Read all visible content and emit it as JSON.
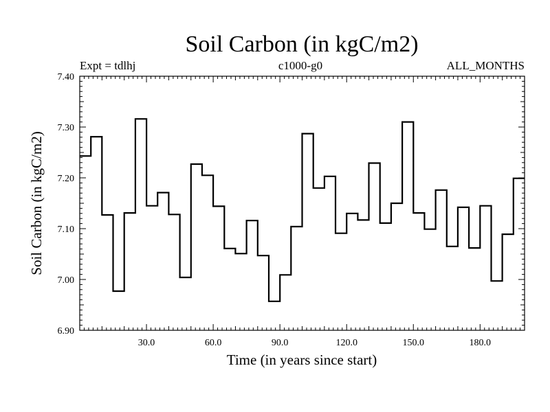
{
  "chart_data": {
    "type": "line",
    "step": true,
    "title": "Soil Carbon (in kgC/m2)",
    "subtitle_left": "Expt = tdlhj",
    "subtitle_center": "c1000-g0",
    "subtitle_right": "ALL_MONTHS",
    "xlabel": "Time (in years since start)",
    "ylabel": "Soil Carbon (in kgC/m2)",
    "xlim": [
      0,
      200
    ],
    "ylim": [
      6.9,
      7.4
    ],
    "xticks": [
      30,
      60,
      90,
      120,
      150,
      180
    ],
    "xtick_labels": [
      "30.0",
      "60.0",
      "90.0",
      "120.0",
      "150.0",
      "180.0"
    ],
    "yticks": [
      6.9,
      7.0,
      7.1,
      7.2,
      7.3,
      7.4
    ],
    "ytick_labels": [
      "6.90",
      "7.00",
      "7.10",
      "7.20",
      "7.30",
      "7.40"
    ],
    "series": [
      {
        "name": "Soil Carbon",
        "x": [
          0,
          5,
          10,
          15,
          20,
          25,
          30,
          35,
          40,
          45,
          50,
          55,
          60,
          65,
          70,
          75,
          80,
          85,
          90,
          95,
          100,
          105,
          110,
          115,
          120,
          125,
          130,
          135,
          140,
          145,
          150,
          155,
          160,
          165,
          170,
          175,
          180,
          185,
          190,
          195,
          200
        ],
        "values": [
          7.243,
          7.281,
          7.127,
          6.977,
          7.131,
          7.316,
          7.145,
          7.171,
          7.128,
          7.004,
          7.227,
          7.205,
          7.144,
          7.061,
          7.051,
          7.116,
          7.047,
          6.957,
          7.009,
          7.104,
          7.287,
          7.18,
          7.203,
          7.091,
          7.13,
          7.117,
          7.229,
          7.111,
          7.15,
          7.31,
          7.131,
          7.099,
          7.176,
          7.065,
          7.142,
          7.062,
          7.145,
          6.997,
          7.089,
          7.199,
          7.199
        ]
      }
    ]
  }
}
